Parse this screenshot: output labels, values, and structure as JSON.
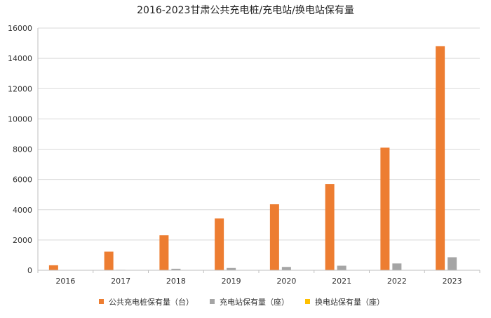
{
  "chart_data": {
    "type": "bar",
    "title": "2016-2023甘肃公共充电桩/充电站/换电站保有量",
    "xlabel": "",
    "ylabel": "",
    "categories": [
      "2016",
      "2017",
      "2018",
      "2019",
      "2020",
      "2021",
      "2022",
      "2023"
    ],
    "ylim": [
      0,
      16000
    ],
    "yticks": [
      "0",
      "2000",
      "4000",
      "6000",
      "8000",
      "10000",
      "12000",
      "14000",
      "16000"
    ],
    "grid": true,
    "legend_position": "bottom",
    "series": [
      {
        "name": "公共充电桩保有量（台）",
        "color": "#ed7d31",
        "values": [
          330,
          1230,
          2310,
          3420,
          4360,
          5700,
          8100,
          14800
        ]
      },
      {
        "name": "充电站保有量（座）",
        "color": "#a5a5a5",
        "values": [
          10,
          30,
          100,
          150,
          220,
          300,
          450,
          860
        ]
      },
      {
        "name": "换电站保有量（座）",
        "color": "#ffc000",
        "values": [
          0,
          0,
          0,
          0,
          0,
          0,
          0,
          0
        ]
      }
    ]
  }
}
